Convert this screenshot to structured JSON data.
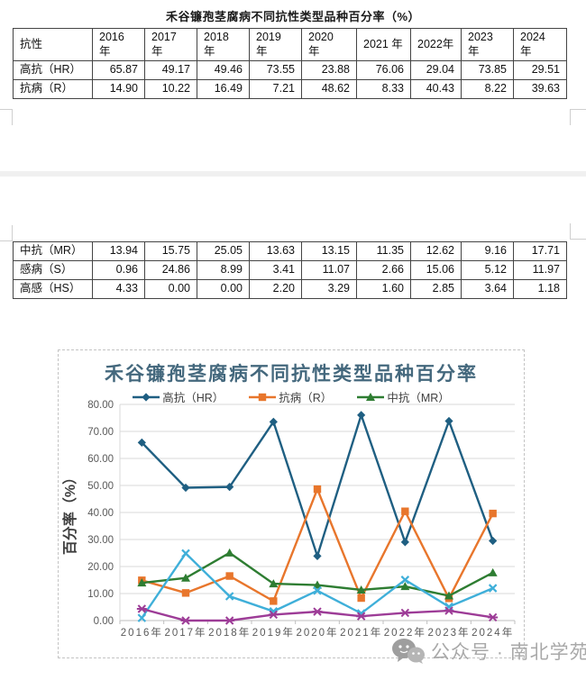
{
  "doc": {
    "title": "禾谷镰孢茎腐病不同抗性类型品种百分率（%）",
    "watermark_text": "公众号 · 南北学苑"
  },
  "table": {
    "header": [
      "抗性",
      "2016 年",
      "2017 年",
      "2018 年",
      "2019 年",
      "2020\n年",
      "2021 年",
      "2022年",
      "2023\n年",
      "2024\n年"
    ],
    "rows_top": [
      {
        "label": "高抗（HR）",
        "values": [
          "65.87",
          "49.17",
          "49.46",
          "73.55",
          "23.88",
          "76.06",
          "29.04",
          "73.85",
          "29.51"
        ]
      },
      {
        "label": "抗病（R）",
        "values": [
          "14.90",
          "10.22",
          "16.49",
          "7.21",
          "48.62",
          "8.33",
          "40.43",
          "8.22",
          "39.63"
        ]
      }
    ],
    "rows_bottom": [
      {
        "label": "中抗（MR）",
        "values": [
          "13.94",
          "15.75",
          "25.05",
          "13.63",
          "13.15",
          "11.35",
          "12.62",
          "9.16",
          "17.71"
        ]
      },
      {
        "label": "感病（S）",
        "values": [
          "0.96",
          "24.86",
          "8.99",
          "3.41",
          "11.07",
          "2.66",
          "15.06",
          "5.12",
          "11.97"
        ]
      },
      {
        "label": "高感（HS）",
        "values": [
          "4.33",
          "0.00",
          "0.00",
          "2.20",
          "3.29",
          "1.60",
          "2.85",
          "3.64",
          "1.18"
        ]
      }
    ]
  },
  "chart_data": {
    "type": "line",
    "title": "禾谷镰孢茎腐病不同抗性类型品种百分率",
    "xlabel": "",
    "ylabel": "百分率（%）",
    "ylim": [
      0,
      80
    ],
    "ytick_step": 10,
    "ytick_format_decimals": 2,
    "grid": true,
    "legend_position": "top",
    "legend_visible_count": 3,
    "categories": [
      "2016年",
      "2017年",
      "2018年",
      "2019年",
      "2020年",
      "2021年",
      "2022年",
      "2023年",
      "2024年"
    ],
    "series": [
      {
        "name": "高抗（HR）",
        "marker": "diamond",
        "color": "#1F5F82",
        "values": [
          65.87,
          49.17,
          49.46,
          73.55,
          23.88,
          76.06,
          29.04,
          73.85,
          29.51
        ]
      },
      {
        "name": "抗病（R）",
        "marker": "square",
        "color": "#E8762C",
        "values": [
          14.9,
          10.22,
          16.49,
          7.21,
          48.62,
          8.33,
          40.43,
          8.22,
          39.63
        ]
      },
      {
        "name": "中抗（MR）",
        "marker": "triangle",
        "color": "#2E7D32",
        "values": [
          13.94,
          15.75,
          25.05,
          13.63,
          13.15,
          11.35,
          12.62,
          9.16,
          17.71
        ]
      },
      {
        "name": "感病（S）",
        "marker": "x",
        "color": "#3FAFD9",
        "values": [
          0.96,
          24.86,
          8.99,
          3.41,
          11.07,
          2.66,
          15.06,
          5.12,
          11.97
        ]
      },
      {
        "name": "高感（HS）",
        "marker": "asterisk",
        "color": "#9D3C97",
        "values": [
          4.33,
          0.0,
          0.0,
          2.2,
          3.29,
          1.6,
          2.85,
          3.64,
          1.18
        ]
      }
    ],
    "colors": {
      "title": "#44687d",
      "grid": "#d9d9d9",
      "axis": "#bfbfbf",
      "tick_label": "#595959",
      "axis_title": "#3f3f3f"
    }
  }
}
